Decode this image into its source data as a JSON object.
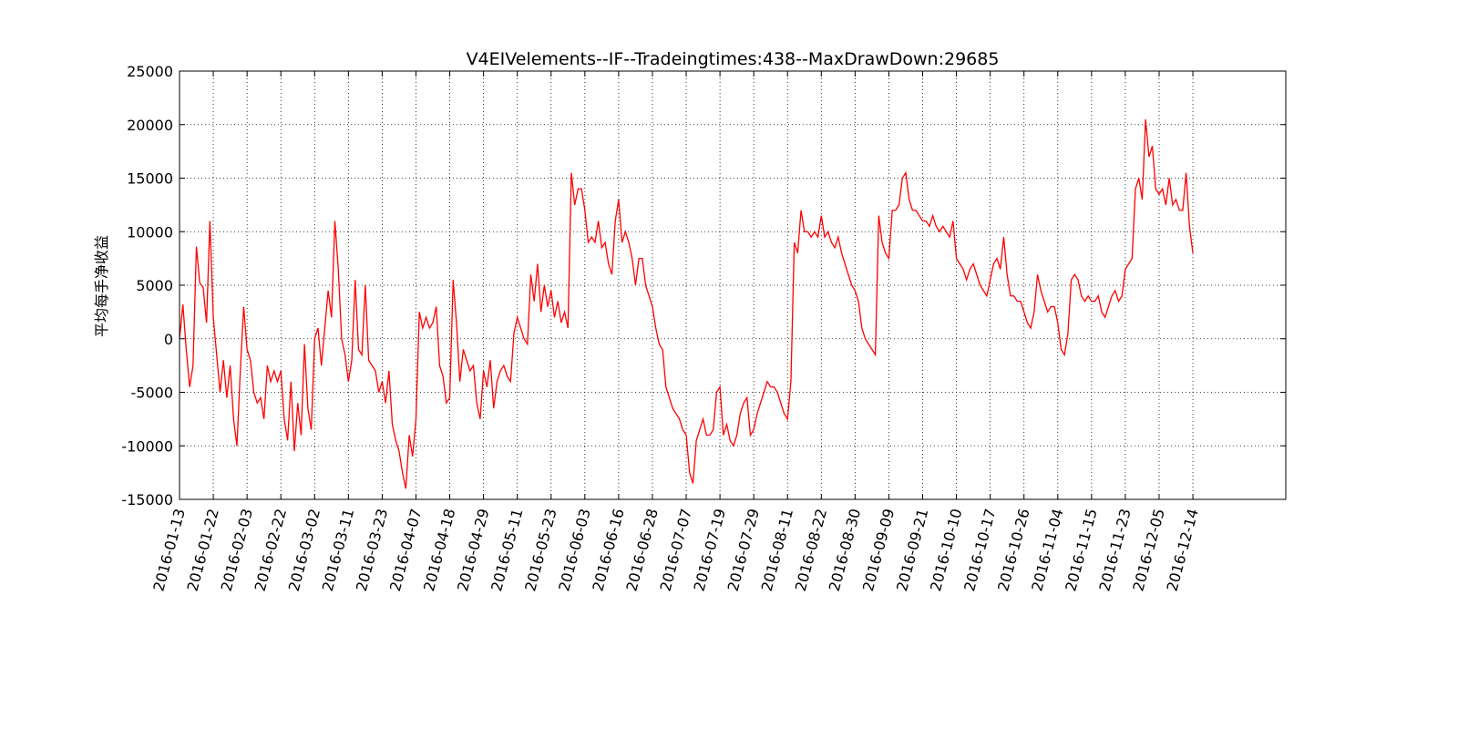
{
  "chart_data": {
    "type": "line",
    "title": "V4EIVelements--IF--Tradeingtimes:438--MaxDrawDown:29685",
    "y_label": "平均每手净收益",
    "color": "#ff0000",
    "grid": true,
    "xlim": [
      0,
      327.5
    ],
    "ylim": [
      -15000,
      25000
    ],
    "yticks": [
      -15000,
      -10000,
      -5000,
      0,
      5000,
      10000,
      15000,
      20000,
      25000
    ],
    "xticks": [
      {
        "value": 0,
        "label": "2016-01-13"
      },
      {
        "value": 10,
        "label": "2016-01-22"
      },
      {
        "value": 20,
        "label": "2016-02-03"
      },
      {
        "value": 30,
        "label": "2016-02-22"
      },
      {
        "value": 40,
        "label": "2016-03-02"
      },
      {
        "value": 50,
        "label": "2016-03-11"
      },
      {
        "value": 60,
        "label": "2016-03-23"
      },
      {
        "value": 70,
        "label": "2016-04-07"
      },
      {
        "value": 80,
        "label": "2016-04-18"
      },
      {
        "value": 90,
        "label": "2016-04-29"
      },
      {
        "value": 100,
        "label": "2016-05-11"
      },
      {
        "value": 110,
        "label": "2016-05-23"
      },
      {
        "value": 120,
        "label": "2016-06-03"
      },
      {
        "value": 130,
        "label": "2016-06-16"
      },
      {
        "value": 140,
        "label": "2016-06-28"
      },
      {
        "value": 150,
        "label": "2016-07-07"
      },
      {
        "value": 160,
        "label": "2016-07-19"
      },
      {
        "value": 170,
        "label": "2016-07-29"
      },
      {
        "value": 180,
        "label": "2016-08-11"
      },
      {
        "value": 190,
        "label": "2016-08-22"
      },
      {
        "value": 200,
        "label": "2016-08-30"
      },
      {
        "value": 210,
        "label": "2016-09-09"
      },
      {
        "value": 220,
        "label": "2016-09-21"
      },
      {
        "value": 230,
        "label": "2016-10-10"
      },
      {
        "value": 240,
        "label": "2016-10-17"
      },
      {
        "value": 250,
        "label": "2016-10-26"
      },
      {
        "value": 260,
        "label": "2016-11-04"
      },
      {
        "value": 270,
        "label": "2016-11-15"
      },
      {
        "value": 280,
        "label": "2016-11-23"
      },
      {
        "value": 290,
        "label": "2016-12-05"
      },
      {
        "value": 300,
        "label": "2016-12-14"
      }
    ],
    "x": [
      0,
      1,
      2,
      3,
      4,
      5,
      6,
      7,
      8,
      9,
      10,
      11,
      12,
      13,
      14,
      15,
      16,
      17,
      18,
      19,
      20,
      21,
      22,
      23,
      24,
      25,
      26,
      27,
      28,
      29,
      30,
      31,
      32,
      33,
      34,
      35,
      36,
      37,
      38,
      39,
      40,
      41,
      42,
      43,
      44,
      45,
      46,
      47,
      48,
      49,
      50,
      51,
      52,
      53,
      54,
      55,
      56,
      57,
      58,
      59,
      60,
      61,
      62,
      63,
      64,
      65,
      66,
      67,
      68,
      69,
      70,
      71,
      72,
      73,
      74,
      75,
      76,
      77,
      78,
      79,
      80,
      81,
      82,
      83,
      84,
      85,
      86,
      87,
      88,
      89,
      90,
      91,
      92,
      93,
      94,
      95,
      96,
      97,
      98,
      99,
      100,
      101,
      102,
      103,
      104,
      105,
      106,
      107,
      108,
      109,
      110,
      111,
      112,
      113,
      114,
      115,
      116,
      117,
      118,
      119,
      120,
      121,
      122,
      123,
      124,
      125,
      126,
      127,
      128,
      129,
      130,
      131,
      132,
      133,
      134,
      135,
      136,
      137,
      138,
      139,
      140,
      141,
      142,
      143,
      144,
      145,
      146,
      147,
      148,
      149,
      150,
      151,
      152,
      153,
      154,
      155,
      156,
      157,
      158,
      159,
      160,
      161,
      162,
      163,
      164,
      165,
      166,
      167,
      168,
      169,
      170,
      171,
      172,
      173,
      174,
      175,
      176,
      177,
      178,
      179,
      180,
      181,
      182,
      183,
      184,
      185,
      186,
      187,
      188,
      189,
      190,
      191,
      192,
      193,
      194,
      195,
      196,
      197,
      198,
      199,
      200,
      201,
      202,
      203,
      204,
      205,
      206,
      207,
      208,
      209,
      210,
      211,
      212,
      213,
      214,
      215,
      216,
      217,
      218,
      219,
      220,
      221,
      222,
      223,
      224,
      225,
      226,
      227,
      228,
      229,
      230,
      231,
      232,
      233,
      234,
      235,
      236,
      237,
      238,
      239,
      240,
      241,
      242,
      243,
      244,
      245,
      246,
      247,
      248,
      249,
      250,
      251,
      252,
      253,
      254,
      255,
      256,
      257,
      258,
      259,
      260,
      261,
      262,
      263,
      264,
      265,
      266,
      267,
      268,
      269,
      270,
      271,
      272,
      273,
      274,
      275,
      276,
      277,
      278,
      279,
      280,
      281,
      282,
      283,
      284,
      285,
      286,
      287,
      288,
      289,
      290,
      291,
      292,
      293,
      294,
      295,
      296,
      297,
      298,
      299,
      300
    ],
    "values": [
      0,
      3200,
      -1000,
      -4500,
      -2500,
      8600,
      5200,
      4800,
      1500,
      11000,
      2000,
      -1500,
      -5000,
      -2000,
      -5500,
      -2500,
      -7500,
      -10000,
      -3000,
      3000,
      -1000,
      -2000,
      -5000,
      -6000,
      -5500,
      -7500,
      -2500,
      -4000,
      -3000,
      -4000,
      -3000,
      -7500,
      -9500,
      -4000,
      -10500,
      -6000,
      -9000,
      -500,
      -6500,
      -8500,
      0,
      1000,
      -2500,
      1000,
      4500,
      2000,
      11000,
      6500,
      0,
      -1500,
      -4000,
      -2000,
      5500,
      -1000,
      -1500,
      5000,
      -2000,
      -2500,
      -3000,
      -5000,
      -4000,
      -6000,
      -3000,
      -8000,
      -9500,
      -10500,
      -12500,
      -14000,
      -9000,
      -11000,
      -7500,
      2500,
      1000,
      2000,
      1000,
      1500,
      3000,
      -2500,
      -3500,
      -6000,
      -5500,
      5500,
      1500,
      -4000,
      -1000,
      -2000,
      -3000,
      -2500,
      -6000,
      -7500,
      -3000,
      -4500,
      -2000,
      -6500,
      -4000,
      -3000,
      -2500,
      -3500,
      -4000,
      500,
      2000,
      1000,
      0,
      -500,
      6000,
      3500,
      7000,
      2500,
      5000,
      3000,
      4500,
      2000,
      3500,
      1500,
      2500,
      1000,
      15500,
      12500,
      14000,
      14000,
      12000,
      9000,
      9500,
      9000,
      11000,
      8500,
      9000,
      7000,
      6000,
      11000,
      13000,
      9000,
      10000,
      9000,
      7500,
      5000,
      7500,
      7500,
      5000,
      4000,
      3000,
      1000,
      -500,
      -1000,
      -4500,
      -5500,
      -6500,
      -7000,
      -7500,
      -8500,
      -9000,
      -12500,
      -13500,
      -9500,
      -8500,
      -7500,
      -9000,
      -9000,
      -8500,
      -5000,
      -4500,
      -9000,
      -8000,
      -9500,
      -10000,
      -9000,
      -7000,
      -6000,
      -5500,
      -9000,
      -8500,
      -7000,
      -6000,
      -5000,
      -4000,
      -4500,
      -4500,
      -5000,
      -6000,
      -7000,
      -7500,
      -4000,
      9000,
      8000,
      12000,
      10000,
      10000,
      9500,
      10000,
      9500,
      11500,
      9500,
      10000,
      9000,
      8500,
      9500,
      8000,
      7000,
      6000,
      5000,
      4500,
      3500,
      1000,
      0,
      -500,
      -1000,
      -1500,
      11500,
      9000,
      8000,
      7500,
      12000,
      12000,
      12500,
      15000,
      15500,
      13000,
      12000,
      12000,
      11500,
      11000,
      11000,
      10500,
      11500,
      10500,
      10000,
      10500,
      10000,
      9500,
      11000,
      7500,
      7000,
      6500,
      5500,
      6500,
      7000,
      6000,
      5000,
      4500,
      4000,
      5500,
      7000,
      7500,
      6500,
      9500,
      6000,
      4000,
      4000,
      3500,
      3500,
      2500,
      1500,
      1000,
      2500,
      6000,
      4500,
      3500,
      2500,
      3000,
      3000,
      1500,
      -1000,
      -1500,
      500,
      5500,
      6000,
      5500,
      4000,
      3500,
      4000,
      3500,
      3500,
      4000,
      2500,
      2000,
      3000,
      4000,
      4500,
      3500,
      4000,
      6500,
      7000,
      7500,
      14000,
      15000,
      13000,
      20500,
      17000,
      18000,
      14000,
      13500,
      14000,
      12500,
      15000,
      12500,
      13000,
      12000,
      12000,
      15500,
      10500,
      8000
    ]
  }
}
